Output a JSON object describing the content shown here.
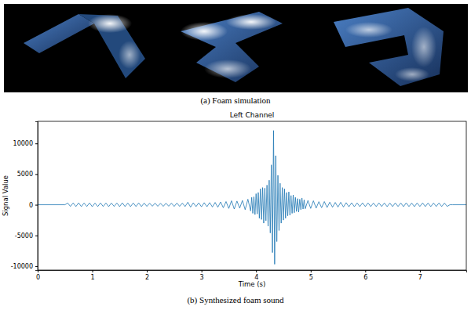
{
  "captions": [
    "(a) Foam simulation",
    "(b) Synthesized foam sound"
  ],
  "chart_data": {
    "type": "line",
    "title": "Left Channel",
    "x_label": "Time (s)",
    "y_label": "Signal Value",
    "color": "#1f77b4",
    "xlim": [
      0,
      7.85
    ],
    "ylim": [
      -10650,
      13600
    ],
    "xticks": [
      0,
      1,
      2,
      3,
      4,
      5,
      6,
      7
    ],
    "yticks": [
      -10000,
      -5000,
      0,
      5000,
      10000
    ],
    "x": [
      0,
      0.5,
      0.55,
      0.6,
      0.65,
      0.7,
      0.75,
      0.8,
      0.85,
      0.9,
      0.95,
      1.0,
      1.05,
      1.1,
      1.15,
      1.2,
      1.25,
      1.3,
      1.35,
      1.4,
      1.45,
      1.5,
      1.55,
      1.6,
      1.65,
      1.7,
      1.75,
      1.8,
      1.85,
      1.9,
      1.95,
      2.0,
      2.05,
      2.1,
      2.15,
      2.2,
      2.25,
      2.3,
      2.35,
      2.4,
      2.45,
      2.5,
      2.55,
      2.6,
      2.65,
      2.7,
      2.75,
      2.8,
      2.85,
      2.9,
      2.95,
      3.0,
      3.05,
      3.1,
      3.15,
      3.2,
      3.25,
      3.3,
      3.35,
      3.4,
      3.45,
      3.5,
      3.55,
      3.6,
      3.65,
      3.7,
      3.75,
      3.8,
      3.85,
      3.9,
      3.92,
      3.94,
      3.96,
      3.98,
      4.0,
      4.02,
      4.04,
      4.06,
      4.08,
      4.1,
      4.12,
      4.14,
      4.16,
      4.18,
      4.2,
      4.22,
      4.24,
      4.26,
      4.28,
      4.3,
      4.32,
      4.34,
      4.36,
      4.38,
      4.4,
      4.42,
      4.44,
      4.46,
      4.48,
      4.5,
      4.52,
      4.54,
      4.56,
      4.58,
      4.6,
      4.62,
      4.64,
      4.66,
      4.68,
      4.7,
      4.72,
      4.74,
      4.76,
      4.78,
      4.8,
      4.82,
      4.84,
      4.86,
      4.88,
      4.9,
      4.95,
      5.0,
      5.05,
      5.1,
      5.15,
      5.2,
      5.25,
      5.3,
      5.35,
      5.4,
      5.45,
      5.5,
      5.55,
      5.6,
      5.65,
      5.7,
      5.75,
      5.8,
      5.85,
      5.9,
      5.95,
      6.0,
      6.05,
      6.1,
      6.15,
      6.2,
      6.25,
      6.3,
      6.35,
      6.4,
      6.45,
      6.5,
      6.55,
      6.6,
      6.65,
      6.7,
      6.75,
      6.8,
      6.85,
      6.9,
      6.95,
      7.0,
      7.05,
      7.1,
      7.15,
      7.2,
      7.25,
      7.3,
      7.35,
      7.4,
      7.45,
      7.5,
      7.55,
      7.6,
      7.85
    ],
    "values": [
      0,
      0,
      280,
      -270,
      300,
      -290,
      310,
      -300,
      290,
      -280,
      300,
      -310,
      280,
      -290,
      300,
      -280,
      290,
      -300,
      280,
      -270,
      290,
      -300,
      310,
      -290,
      280,
      -300,
      290,
      -280,
      300,
      -290,
      270,
      -260,
      250,
      -240,
      260,
      -250,
      240,
      -260,
      250,
      -240,
      260,
      -270,
      280,
      -260,
      270,
      -290,
      420,
      -380,
      320,
      -300,
      310,
      -330,
      340,
      -320,
      350,
      -360,
      380,
      -400,
      450,
      -480,
      520,
      -600,
      650,
      -700,
      600,
      -550,
      700,
      -800,
      900,
      -1000,
      1200,
      -1400,
      1300,
      -1600,
      1800,
      -1500,
      2000,
      -2200,
      2600,
      -2400,
      2800,
      -3000,
      2700,
      -2600,
      3200,
      -3500,
      4000,
      -4600,
      6500,
      -7800,
      12100,
      -9700,
      8000,
      -6000,
      4800,
      -4200,
      3500,
      -3000,
      2800,
      -2500,
      2600,
      -2200,
      2000,
      -1800,
      2100,
      -1700,
      1500,
      -1400,
      1600,
      -1300,
      1200,
      -1100,
      1000,
      -1200,
      900,
      -800,
      1100,
      -700,
      800,
      -650,
      700,
      -600,
      650,
      -550,
      500,
      -480,
      520,
      -450,
      420,
      -400,
      380,
      -370,
      400,
      -360,
      340,
      -330,
      320,
      -310,
      300,
      -300,
      310,
      -290,
      300,
      -290,
      280,
      -290,
      300,
      -280,
      290,
      -300,
      280,
      -290,
      300,
      -280,
      290,
      -300,
      310,
      -290,
      280,
      -300,
      290,
      -280,
      300,
      -290,
      280,
      -300,
      290,
      -280,
      300,
      -290,
      280,
      -270,
      0,
      0,
      0
    ]
  }
}
